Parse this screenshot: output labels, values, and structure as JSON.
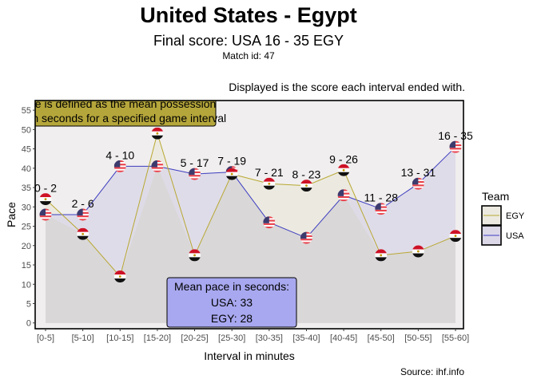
{
  "chart_data": {
    "type": "line",
    "title": "United States - Egypt",
    "subtitle": "Final score: USA 16 - 35 EGY",
    "match_id_label": "Match id: 47",
    "caption": "Displayed is the score each interval ended with.",
    "source": "Source: ihf.info",
    "xlabel": "Interval in minutes",
    "ylabel": "Pace",
    "categories": [
      "[0-5]",
      "[5-10]",
      "[10-15]",
      "[15-20]",
      "[20-25]",
      "[25-30]",
      "[30-35]",
      "[35-40]",
      "[40-45]",
      "[45-50]",
      "[50-55]",
      "[55-60]"
    ],
    "yticks": [
      0,
      5,
      10,
      15,
      20,
      25,
      30,
      35,
      40,
      45,
      50,
      55
    ],
    "ylim": [
      -1.5,
      57.5
    ],
    "grid": false,
    "series": [
      {
        "name": "EGY",
        "values": [
          32,
          23,
          12,
          49,
          17.5,
          38.5,
          36,
          35.5,
          39.5,
          17.5,
          18.5,
          22.5
        ],
        "line_color": "#b8a832",
        "fill_color": "#eceae0"
      },
      {
        "name": "USA",
        "values": [
          28,
          28,
          40.5,
          40.5,
          38.5,
          39,
          26,
          22,
          33,
          29.5,
          36,
          45.5
        ],
        "line_color": "#3c3cbf",
        "fill_color": "#dcd8e8"
      }
    ],
    "score_labels": [
      "0 - 2",
      "2 - 6",
      "4 - 10",
      "",
      "5 - 17",
      "7 - 19",
      "7 - 21",
      "8 - 23",
      "9 - 26",
      "11 - 28",
      "13 - 31",
      "16 - 35"
    ],
    "legend": {
      "title": "Team",
      "position": "right",
      "items": [
        "EGY",
        "USA"
      ]
    },
    "note_box": {
      "text_lines": [
        "Pace is defined as the mean possession",
        "time in seconds for a specified game interval"
      ],
      "fill": "#b5a63b"
    },
    "mean_box": {
      "lines": [
        "Mean pace in seconds:",
        "USA: 33",
        "EGY: 28"
      ],
      "fill": "#a8a8f0"
    },
    "colors": {
      "panel_background": "#f0eeee",
      "under_fill": "#d9d7d7",
      "egy_flag_red": "#ce1126",
      "usa_flag_red": "#e8414b",
      "usa_flag_blue": "#3c3b6e"
    }
  }
}
